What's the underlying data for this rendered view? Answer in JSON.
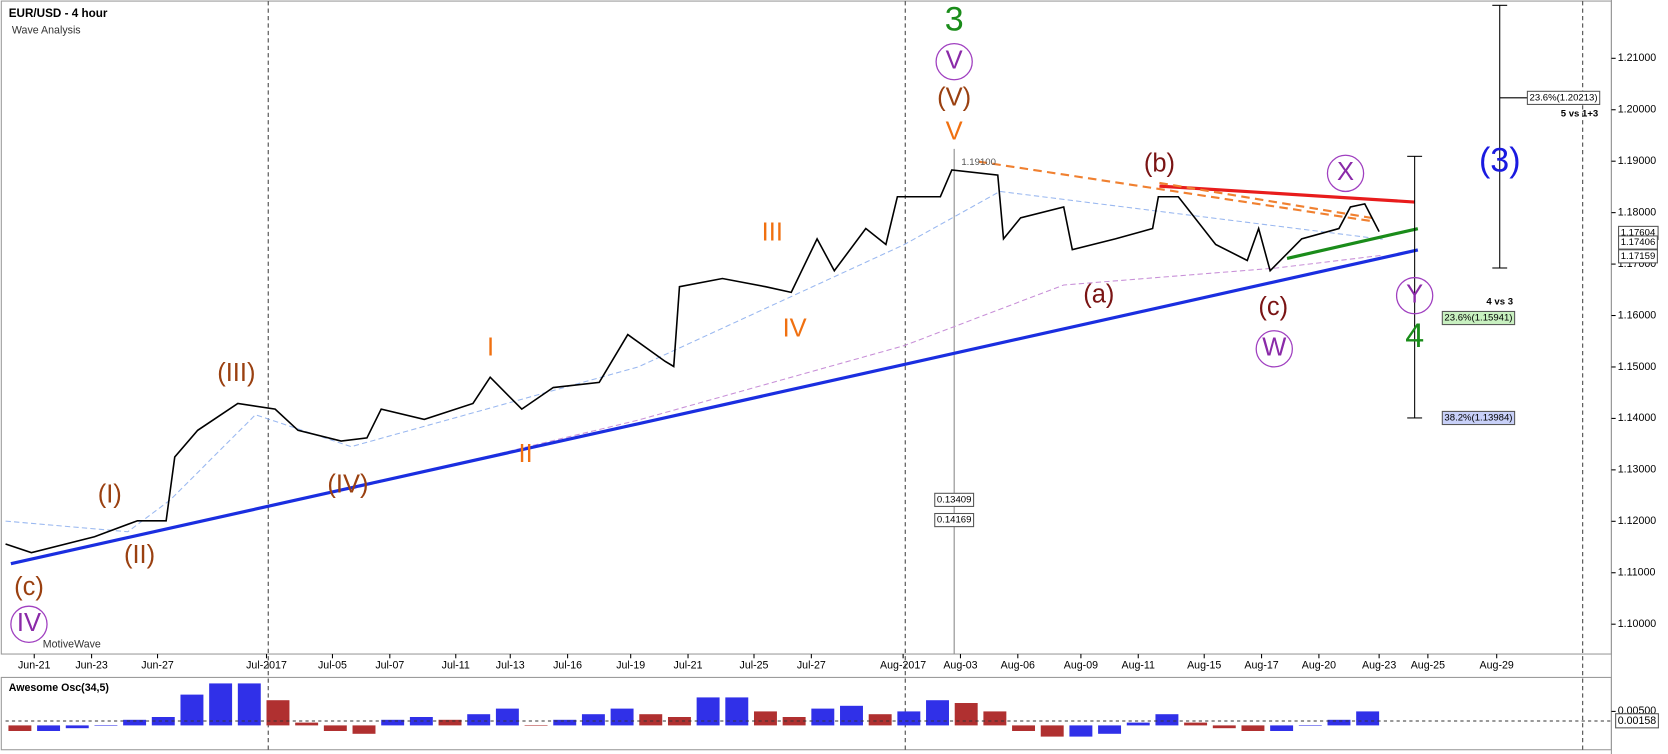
{
  "chart_data": [
    {
      "type": "line",
      "title": "EUR/USD - 4 hour",
      "subtitle": "Wave Analysis",
      "watermark": "MotiveWave",
      "color": "#000000",
      "x": [
        0.0,
        0.9,
        3.1,
        4.6,
        5.6,
        5.9,
        6.7,
        8.1,
        9.4,
        10.2,
        11.7,
        12.6,
        13.1,
        14.6,
        16.3,
        16.9,
        18.0,
        19.1,
        20.7,
        21.7,
        23.0,
        23.3,
        23.5,
        25.0,
        26.5,
        27.4,
        28.3,
        28.9,
        30.0,
        30.7,
        31.1,
        32.6,
        33.0,
        34.6,
        34.8,
        35.4,
        36.9,
        37.2,
        38.7,
        40.0,
        40.2,
        40.9,
        42.2,
        43.3,
        43.7,
        44.1,
        45.2,
        46.5,
        46.9,
        47.4,
        47.9
      ],
      "values": [
        1.1156,
        1.1139,
        1.117,
        1.1201,
        1.1201,
        1.1325,
        1.1377,
        1.1429,
        1.1418,
        1.1377,
        1.1356,
        1.1362,
        1.1418,
        1.1398,
        1.1429,
        1.148,
        1.1418,
        1.146,
        1.147,
        1.1563,
        1.1511,
        1.1501,
        1.1656,
        1.1672,
        1.1656,
        1.1645,
        1.1749,
        1.1687,
        1.1769,
        1.1738,
        1.1831,
        1.1831,
        1.1883,
        1.1873,
        1.1749,
        1.179,
        1.1811,
        1.1728,
        1.1749,
        1.1769,
        1.1831,
        1.1831,
        1.1738,
        1.1707,
        1.1769,
        1.1687,
        1.1749,
        1.1769,
        1.1811,
        1.1817,
        1.1763
      ],
      "xlim": [
        0,
        56
      ],
      "xticks": [
        {
          "value": 1.0,
          "label": "Jun-21"
        },
        {
          "value": 3.0,
          "label": "Jun-23"
        },
        {
          "value": 5.3,
          "label": "Jun-27"
        },
        {
          "value": 9.1,
          "label": "Jul-2017"
        },
        {
          "value": 11.4,
          "label": "Jul-05"
        },
        {
          "value": 13.4,
          "label": "Jul-07"
        },
        {
          "value": 15.7,
          "label": "Jul-11"
        },
        {
          "value": 17.6,
          "label": "Jul-13"
        },
        {
          "value": 19.6,
          "label": "Jul-16"
        },
        {
          "value": 21.8,
          "label": "Jul-19"
        },
        {
          "value": 23.8,
          "label": "Jul-21"
        },
        {
          "value": 26.1,
          "label": "Jul-25"
        },
        {
          "value": 28.1,
          "label": "Jul-27"
        },
        {
          "value": 31.3,
          "label": "Aug-2017"
        },
        {
          "value": 33.3,
          "label": "Aug-03"
        },
        {
          "value": 35.3,
          "label": "Aug-06"
        },
        {
          "value": 37.5,
          "label": "Aug-09"
        },
        {
          "value": 39.5,
          "label": "Aug-11"
        },
        {
          "value": 41.8,
          "label": "Aug-15"
        },
        {
          "value": 43.8,
          "label": "Aug-17"
        },
        {
          "value": 45.8,
          "label": "Aug-20"
        },
        {
          "value": 47.9,
          "label": "Aug-23"
        },
        {
          "value": 49.6,
          "label": "Aug-25"
        },
        {
          "value": 52.0,
          "label": "Aug-29"
        }
      ],
      "ylim": [
        1.0942,
        1.2203
      ],
      "yticks": [
        {
          "value": 1.1,
          "label": "1.10000"
        },
        {
          "value": 1.11,
          "label": "1.11000"
        },
        {
          "value": 1.12,
          "label": "1.12000"
        },
        {
          "value": 1.13,
          "label": "1.13000"
        },
        {
          "value": 1.14,
          "label": "1.14000"
        },
        {
          "value": 1.15,
          "label": "1.15000"
        },
        {
          "value": 1.16,
          "label": "1.16000"
        },
        {
          "value": 1.17,
          "label": "1.17000"
        },
        {
          "value": 1.18,
          "label": "1.18000"
        },
        {
          "value": 1.19,
          "label": "1.19000"
        },
        {
          "value": 1.2,
          "label": "1.20000"
        },
        {
          "value": 1.21,
          "label": "1.21000"
        }
      ],
      "annotations": [
        "3",
        "V",
        "(V)",
        "V",
        "(III)",
        "I",
        "III",
        "IV",
        "II",
        "(I)",
        "(II)",
        "(IV)",
        "(c)",
        "IV",
        "(b)",
        "(a)",
        "(c)",
        "W",
        "X",
        "Y",
        "(3)",
        "4",
        "1.19100",
        "0.13409",
        "0.14169",
        "23.6%(1.20213)",
        "5 vs 1+3",
        "4 vs 3",
        "23.6%(1.15941)",
        "38.2%(1.13984)",
        "1.17604",
        "1.17406",
        "1.17159"
      ]
    },
    {
      "type": "bar",
      "title": "Awesome Osc(34,5)",
      "rise_color": "#3030e8",
      "fall_color": "#b03030",
      "x": [
        0.5,
        1.5,
        2.5,
        3.5,
        4.5,
        5.5,
        6.5,
        7.5,
        8.5,
        9.5,
        10.5,
        11.5,
        12.5,
        13.5,
        14.5,
        15.5,
        16.5,
        17.5,
        18.5,
        19.5,
        20.5,
        21.5,
        22.5,
        23.5,
        24.5,
        25.5,
        26.5,
        27.5,
        28.5,
        29.5,
        30.5,
        31.5,
        32.5,
        33.5,
        34.5,
        35.5,
        36.5,
        37.5,
        38.5,
        39.5,
        40.5,
        41.5,
        42.5,
        43.5,
        44.5,
        45.5,
        46.5,
        47.5
      ],
      "values": [
        -0.002,
        -0.002,
        -0.001,
        0.0,
        0.002,
        0.003,
        0.011,
        0.015,
        0.015,
        0.009,
        0.001,
        -0.002,
        -0.003,
        0.002,
        0.003,
        0.002,
        0.004,
        0.006,
        0.0,
        0.002,
        0.004,
        0.006,
        0.004,
        0.003,
        0.01,
        0.01,
        0.005,
        0.003,
        0.006,
        0.007,
        0.004,
        0.005,
        0.009,
        0.008,
        0.005,
        -0.002,
        -0.004,
        -0.004,
        -0.003,
        0.001,
        0.004,
        0.001,
        -0.001,
        -0.002,
        -0.002,
        0.0,
        0.002,
        0.005
      ],
      "xlim": [
        0,
        56
      ],
      "ylim": [
        -0.0087,
        0.016
      ],
      "yticks": [
        {
          "value": 0.005,
          "label": "0.00500"
        }
      ],
      "current": {
        "value": 0.00158,
        "label": "0.00158"
      }
    }
  ]
}
